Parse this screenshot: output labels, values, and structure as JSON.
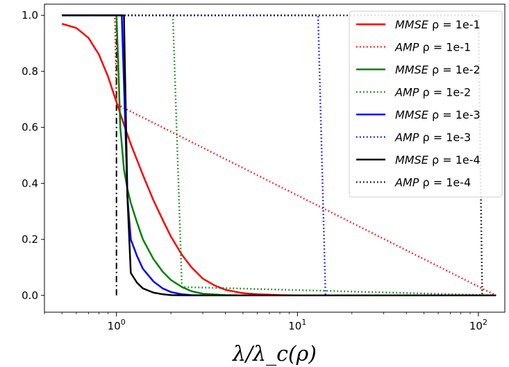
{
  "chart_data": {
    "type": "line",
    "xlabel": "λ/λ_c(ρ)",
    "ylabel": "",
    "title": "",
    "xscale": "log",
    "xlim": [
      0.4,
      140
    ],
    "ylim": [
      -0.06,
      1.04
    ],
    "xticks": [
      {
        "value": 1,
        "base": "10",
        "exp": "0"
      },
      {
        "value": 10,
        "base": "10",
        "exp": "1"
      },
      {
        "value": 100,
        "base": "10",
        "exp": "2"
      }
    ],
    "yticks": [
      "0.0",
      "0.2",
      "0.4",
      "0.6",
      "0.8",
      "1.0"
    ],
    "legend_position": "top-right",
    "series": [
      {
        "label_method": "MMSE",
        "label_param": "ρ = 1e-1",
        "color": "#ff0000",
        "style": "solid",
        "x": [
          0.5,
          0.6,
          0.7,
          0.8,
          0.9,
          1.0,
          1.1,
          1.2,
          1.4,
          1.6,
          1.8,
          2.0,
          2.3,
          2.6,
          3.0,
          3.5,
          4.0,
          5.0,
          6.0,
          8.0,
          10,
          20,
          50,
          125
        ],
        "y": [
          0.97,
          0.955,
          0.92,
          0.86,
          0.78,
          0.69,
          0.61,
          0.54,
          0.43,
          0.34,
          0.27,
          0.21,
          0.145,
          0.1,
          0.06,
          0.035,
          0.02,
          0.008,
          0.004,
          0.001,
          0.0,
          0.0,
          0.0,
          0.0
        ]
      },
      {
        "label_method": "AMP",
        "label_param": "ρ = 1e-1",
        "color": "#ff0000",
        "style": "dotted",
        "x": [
          0.5,
          0.98,
          1.0,
          1.02,
          125
        ],
        "y": [
          1.0,
          1.0,
          0.69,
          0.68,
          0.0
        ]
      },
      {
        "label_method": "MMSE",
        "label_param": "ρ = 1e-2",
        "color": "#008000",
        "style": "solid",
        "x": [
          0.5,
          1.0,
          1.02,
          1.05,
          1.1,
          1.15,
          1.2,
          1.3,
          1.4,
          1.6,
          1.8,
          2.0,
          2.3,
          2.6,
          3.0,
          4.0,
          5.0,
          125
        ],
        "y": [
          1.0,
          1.0,
          0.85,
          0.6,
          0.45,
          0.38,
          0.33,
          0.26,
          0.2,
          0.13,
          0.085,
          0.055,
          0.03,
          0.015,
          0.006,
          0.001,
          0.0,
          0.0
        ]
      },
      {
        "label_method": "AMP",
        "label_param": "ρ = 1e-2",
        "color": "#008000",
        "style": "dotted",
        "x": [
          0.5,
          2.05,
          2.3,
          125
        ],
        "y": [
          1.0,
          1.0,
          0.03,
          0.0
        ]
      },
      {
        "label_method": "MMSE",
        "label_param": "ρ = 1e-3",
        "color": "#0000ff",
        "style": "solid",
        "x": [
          0.5,
          1.07,
          1.12,
          1.15,
          1.2,
          1.3,
          1.4,
          1.6,
          1.8,
          2.0,
          2.3,
          2.6,
          3.0,
          125
        ],
        "y": [
          1.0,
          1.0,
          0.6,
          0.35,
          0.2,
          0.14,
          0.095,
          0.05,
          0.025,
          0.012,
          0.004,
          0.001,
          0.0,
          0.0
        ]
      },
      {
        "label_method": "AMP",
        "label_param": "ρ = 1e-3",
        "color": "#0000ff",
        "style": "dotted",
        "x": [
          0.5,
          13.0,
          14.3,
          125
        ],
        "y": [
          1.0,
          1.0,
          0.0,
          0.0
        ]
      },
      {
        "label_method": "MMSE",
        "label_param": "ρ = 1e-4",
        "color": "#000000",
        "style": "solid",
        "x": [
          0.5,
          1.1,
          1.15,
          1.2,
          1.3,
          1.4,
          1.6,
          1.8,
          2.0,
          2.5,
          125
        ],
        "y": [
          1.0,
          1.0,
          0.35,
          0.08,
          0.045,
          0.025,
          0.01,
          0.004,
          0.001,
          0.0,
          0.0
        ]
      },
      {
        "label_method": "AMP",
        "label_param": "ρ = 1e-4",
        "color": "#000000",
        "style": "dotted",
        "x": [
          0.5,
          100,
          105,
          125
        ],
        "y": [
          1.0,
          1.0,
          0.0,
          0.0
        ]
      }
    ],
    "reference_line": {
      "color": "#000000",
      "style": "dashdot",
      "x": [
        1.0,
        1.0
      ],
      "y": [
        0.0,
        1.0
      ]
    }
  }
}
